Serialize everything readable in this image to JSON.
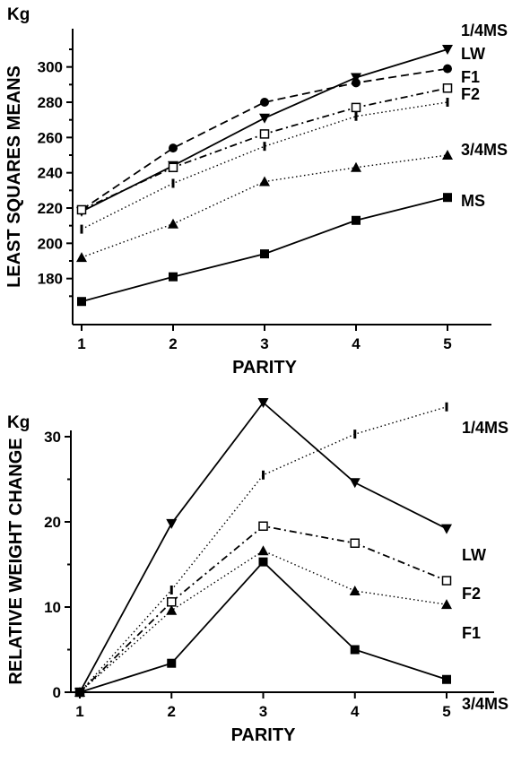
{
  "chart_data": [
    {
      "type": "line",
      "unit": "Kg",
      "xlabel": "PARITY",
      "ylabel": "LEAST SQUARES MEANS",
      "x": [
        1,
        2,
        3,
        4,
        5
      ],
      "xticks": [
        "1",
        "2",
        "3",
        "4",
        "5"
      ],
      "ylim": [
        160,
        310
      ],
      "yticks": [
        180,
        200,
        220,
        240,
        260,
        280,
        300
      ],
      "series": [
        {
          "name": "1/4MS",
          "values": [
            218,
            244,
            271,
            294,
            310
          ],
          "marker": "triangle-down",
          "dash": "solid",
          "color": "#000000"
        },
        {
          "name": "LW",
          "values": [
            219,
            254,
            280,
            291,
            299
          ],
          "marker": "circle",
          "dash": "dashed",
          "color": "#000000"
        },
        {
          "name": "F1",
          "values": [
            219,
            243,
            262,
            277,
            288
          ],
          "marker": "open-square",
          "dash": "dashdot",
          "color": "#000000"
        },
        {
          "name": "F2",
          "values": [
            208,
            234,
            255,
            272,
            280
          ],
          "marker": "bar",
          "dash": "dotted",
          "color": "#000000"
        },
        {
          "name": "3/4MS",
          "values": [
            192,
            211,
            235,
            243,
            250
          ],
          "marker": "triangle-up",
          "dash": "dotted",
          "color": "#000000"
        },
        {
          "name": "MS",
          "values": [
            167,
            181,
            194,
            213,
            226
          ],
          "marker": "square",
          "dash": "solid",
          "color": "#000000"
        }
      ]
    },
    {
      "type": "line",
      "unit": "Kg",
      "xlabel": "PARITY",
      "ylabel": "RELATIVE WEIGHT CHANGE",
      "x": [
        1,
        2,
        3,
        4,
        5
      ],
      "xticks": [
        "1",
        "2",
        "3",
        "4",
        "5"
      ],
      "ylim": [
        0,
        36
      ],
      "yticks": [
        0,
        10,
        20,
        30
      ],
      "ytick_labels": [
        "0",
        "10",
        "20",
        "30"
      ],
      "series": [
        {
          "name": "1/4MS",
          "values": [
            0,
            12,
            25.5,
            30.3,
            33.5
          ],
          "marker": "bar",
          "dash": "dotted",
          "color": "#000000"
        },
        {
          "name": "LW",
          "values": [
            0,
            19.8,
            34,
            24.6,
            19.2
          ],
          "marker": "triangle-down",
          "dash": "solid",
          "color": "#000000"
        },
        {
          "name": "F2",
          "values": [
            0,
            10.6,
            19.5,
            17.5,
            13.1
          ],
          "marker": "open-square",
          "dash": "dashdot",
          "color": "#000000"
        },
        {
          "name": "F1",
          "values": [
            0,
            9.6,
            16.6,
            11.9,
            10.3
          ],
          "marker": "triangle-up",
          "dash": "dotted",
          "color": "#000000"
        },
        {
          "name": "3/4MS",
          "values": [
            0,
            3.4,
            15.3,
            5.0,
            1.5
          ],
          "marker": "square",
          "dash": "solid",
          "color": "#000000"
        }
      ]
    }
  ]
}
